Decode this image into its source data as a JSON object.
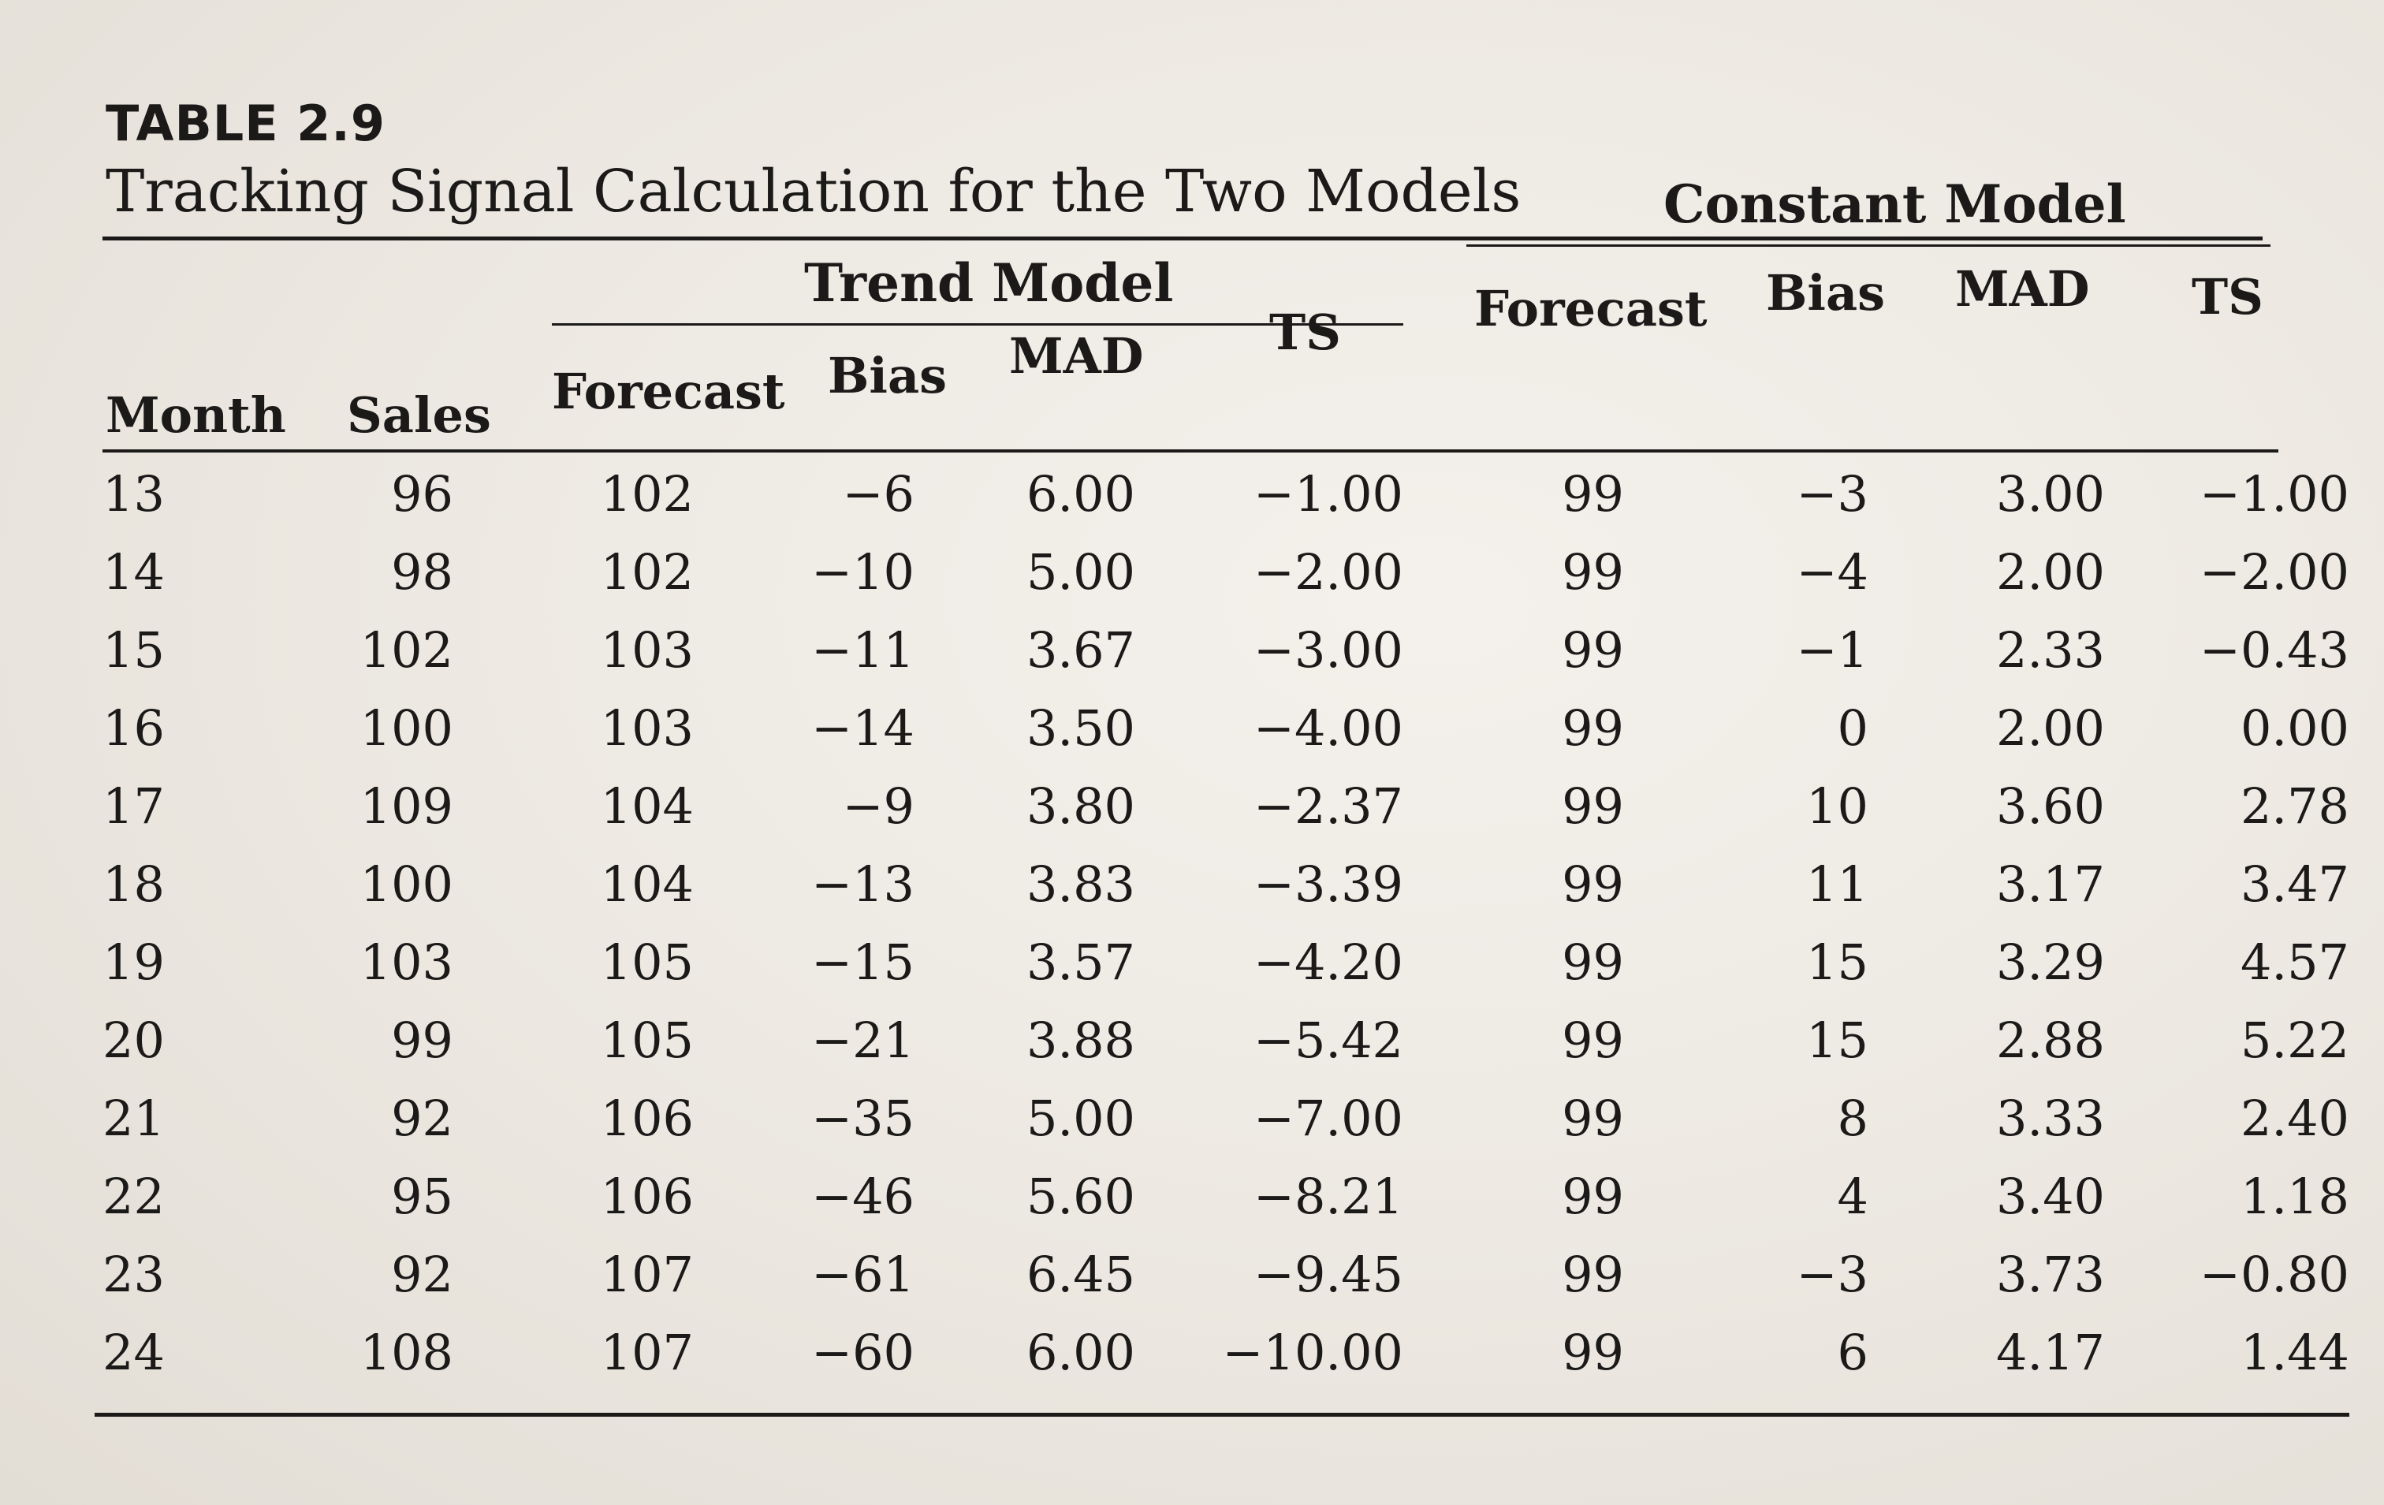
{
  "table": {
    "label": "TABLE 2.9",
    "title": "Tracking Signal Calculation for the Two Models",
    "groups": {
      "trend": "Trend Model",
      "constant": "Constant Model"
    },
    "columns": [
      "Month",
      "Sales",
      "Forecast",
      "Bias",
      "MAD",
      "TS",
      "Forecast",
      "Bias",
      "MAD",
      "TS"
    ],
    "rows": [
      [
        "13",
        "96",
        "102",
        "−6",
        "6.00",
        "−1.00",
        "99",
        "−3",
        "3.00",
        "−1.00"
      ],
      [
        "14",
        "98",
        "102",
        "−10",
        "5.00",
        "−2.00",
        "99",
        "−4",
        "2.00",
        "−2.00"
      ],
      [
        "15",
        "102",
        "103",
        "−11",
        "3.67",
        "−3.00",
        "99",
        "−1",
        "2.33",
        "−0.43"
      ],
      [
        "16",
        "100",
        "103",
        "−14",
        "3.50",
        "−4.00",
        "99",
        "0",
        "2.00",
        "0.00"
      ],
      [
        "17",
        "109",
        "104",
        "−9",
        "3.80",
        "−2.37",
        "99",
        "10",
        "3.60",
        "2.78"
      ],
      [
        "18",
        "100",
        "104",
        "−13",
        "3.83",
        "−3.39",
        "99",
        "11",
        "3.17",
        "3.47"
      ],
      [
        "19",
        "103",
        "105",
        "−15",
        "3.57",
        "−4.20",
        "99",
        "15",
        "3.29",
        "4.57"
      ],
      [
        "20",
        "99",
        "105",
        "−21",
        "3.88",
        "−5.42",
        "99",
        "15",
        "2.88",
        "5.22"
      ],
      [
        "21",
        "92",
        "106",
        "−35",
        "5.00",
        "−7.00",
        "99",
        "8",
        "3.33",
        "2.40"
      ],
      [
        "22",
        "95",
        "106",
        "−46",
        "5.60",
        "−8.21",
        "99",
        "4",
        "3.40",
        "1.18"
      ],
      [
        "23",
        "92",
        "107",
        "−61",
        "6.45",
        "−9.45",
        "99",
        "−3",
        "3.73",
        "−0.80"
      ],
      [
        "24",
        "108",
        "107",
        "−60",
        "6.00",
        "−10.00",
        "99",
        "6",
        "4.17",
        "1.44"
      ]
    ]
  }
}
